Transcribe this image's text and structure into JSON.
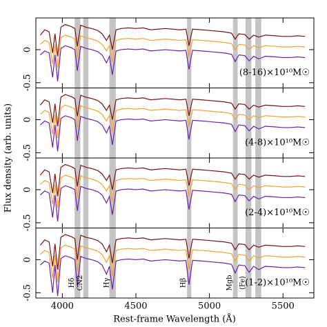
{
  "chart_data": {
    "type": "line",
    "xlabel": "Rest-frame Wavelength (Å)",
    "ylabel": "Flux density (arb. units)",
    "xlim": [
      3820,
      5710
    ],
    "xticks": [
      4000,
      4500,
      5000,
      5500
    ],
    "bands": [
      {
        "label": "Hδ",
        "range": [
          4083.5,
          4122.25
        ]
      },
      {
        "label": "CN2",
        "range": [
          4142,
          4177
        ]
      },
      {
        "label": "Hγ",
        "range": [
          4319.75,
          4363.5
        ]
      },
      {
        "label": "Hβ",
        "range": [
          4847.9,
          4876.6
        ]
      },
      {
        "label": "Mgb",
        "range": [
          5160,
          5192
        ]
      },
      {
        "label": "⟨Fe⟩",
        "range": [
          5245,
          5285
        ]
      },
      {
        "range": [
          5312,
          5352
        ]
      }
    ],
    "x": [
      3850,
      3880,
      3910,
      3934,
      3950,
      3968,
      3990,
      4020,
      4060,
      4085,
      4102,
      4125,
      4160,
      4200,
      4240,
      4270,
      4300,
      4320,
      4340,
      4365,
      4400,
      4450,
      4500,
      4550,
      4600,
      4650,
      4700,
      4750,
      4800,
      4840,
      4861,
      4885,
      4950,
      5000,
      5050,
      5100,
      5150,
      5175,
      5200,
      5240,
      5270,
      5300,
      5335,
      5380,
      5450,
      5500,
      5550,
      5600,
      5650
    ],
    "panels": [
      {
        "annotation": "(8-16)×10¹⁰M☉",
        "ylim": [
          -0.58,
          0.48
        ],
        "yticks": [
          -0.5,
          0
        ],
        "series": [
          {
            "color": "#7a1111",
            "values": [
              0.22,
              0.3,
              0.27,
              -0.05,
              0.24,
              -0.1,
              0.34,
              0.38,
              0.35,
              0.32,
              0.05,
              0.37,
              0.34,
              0.32,
              0.29,
              0.24,
              0.14,
              0.22,
              0.0,
              0.3,
              0.32,
              0.33,
              0.32,
              0.33,
              0.3,
              0.31,
              0.32,
              0.31,
              0.3,
              0.31,
              0.06,
              0.31,
              0.3,
              0.29,
              0.28,
              0.27,
              0.25,
              0.16,
              0.24,
              0.23,
              0.16,
              0.22,
              0.19,
              0.22,
              0.21,
              0.2,
              0.2,
              0.21,
              0.2
            ]
          },
          {
            "color": "#f5a030",
            "values": [
              0.08,
              0.14,
              0.11,
              -0.22,
              0.08,
              -0.28,
              0.18,
              0.22,
              0.19,
              0.16,
              -0.12,
              0.21,
              0.18,
              0.16,
              0.13,
              0.08,
              -0.02,
              0.06,
              -0.18,
              0.14,
              0.16,
              0.17,
              0.16,
              0.17,
              0.14,
              0.15,
              0.16,
              0.15,
              0.14,
              0.15,
              -0.1,
              0.15,
              0.14,
              0.13,
              0.12,
              0.11,
              0.09,
              0,
              0.08,
              0.07,
              0,
              0.06,
              0.03,
              0.06,
              0.05,
              0.04,
              0.04,
              0.05,
              0.04
            ]
          },
          {
            "color": "#6a1fb0",
            "values": [
              -0.08,
              -0.02,
              -0.05,
              -0.42,
              -0.08,
              -0.48,
              0.02,
              0.06,
              0.03,
              0.0,
              -0.32,
              0.05,
              0.02,
              0.0,
              -0.03,
              -0.08,
              -0.2,
              -0.1,
              -0.38,
              -0.02,
              0.0,
              0.01,
              0.0,
              0.01,
              -0.02,
              -0.01,
              0.0,
              -0.01,
              -0.02,
              -0.01,
              -0.3,
              -0.01,
              -0.02,
              -0.03,
              -0.04,
              -0.05,
              -0.07,
              -0.18,
              -0.08,
              -0.09,
              -0.17,
              -0.1,
              -0.14,
              -0.1,
              -0.11,
              -0.12,
              -0.12,
              -0.11,
              -0.12
            ]
          }
        ]
      },
      {
        "annotation": "(4-8)×10¹⁰M☉",
        "ylim": [
          -0.58,
          0.48
        ],
        "yticks": [
          -0.5,
          0
        ],
        "series": [
          {
            "color": "#7a1111",
            "values": [
              0.22,
              0.3,
              0.27,
              -0.05,
              0.24,
              -0.1,
              0.34,
              0.38,
              0.35,
              0.32,
              0.05,
              0.37,
              0.34,
              0.32,
              0.29,
              0.24,
              0.14,
              0.22,
              0.0,
              0.3,
              0.32,
              0.33,
              0.32,
              0.33,
              0.3,
              0.31,
              0.32,
              0.31,
              0.3,
              0.31,
              0.06,
              0.31,
              0.3,
              0.29,
              0.28,
              0.27,
              0.25,
              0.16,
              0.24,
              0.23,
              0.16,
              0.22,
              0.19,
              0.22,
              0.21,
              0.2,
              0.2,
              0.21,
              0.2
            ]
          },
          {
            "color": "#f5a030",
            "values": [
              0.08,
              0.14,
              0.11,
              -0.22,
              0.08,
              -0.28,
              0.18,
              0.22,
              0.19,
              0.16,
              -0.12,
              0.21,
              0.18,
              0.16,
              0.13,
              0.08,
              -0.02,
              0.06,
              -0.18,
              0.14,
              0.16,
              0.17,
              0.16,
              0.17,
              0.14,
              0.15,
              0.16,
              0.15,
              0.14,
              0.15,
              -0.1,
              0.15,
              0.14,
              0.13,
              0.12,
              0.11,
              0.09,
              0,
              0.08,
              0.07,
              0,
              0.06,
              0.03,
              0.06,
              0.05,
              0.04,
              0.04,
              0.05,
              0.04
            ]
          },
          {
            "color": "#6a1fb0",
            "values": [
              -0.08,
              -0.02,
              -0.05,
              -0.42,
              -0.08,
              -0.48,
              0.02,
              0.06,
              0.03,
              0.0,
              -0.32,
              0.05,
              0.02,
              0.0,
              -0.03,
              -0.08,
              -0.2,
              -0.1,
              -0.38,
              -0.02,
              0.0,
              0.01,
              0.0,
              0.01,
              -0.02,
              -0.01,
              0.0,
              -0.01,
              -0.02,
              -0.01,
              -0.3,
              -0.01,
              -0.02,
              -0.03,
              -0.04,
              -0.05,
              -0.07,
              -0.18,
              -0.08,
              -0.09,
              -0.17,
              -0.1,
              -0.14,
              -0.1,
              -0.11,
              -0.12,
              -0.12,
              -0.11,
              -0.12
            ]
          }
        ]
      },
      {
        "annotation": "(2-4)×10¹⁰M☉",
        "ylim": [
          -0.58,
          0.48
        ],
        "yticks": [
          -0.5,
          0
        ],
        "series": [
          {
            "color": "#7a1111",
            "values": [
              0.22,
              0.3,
              0.27,
              -0.05,
              0.24,
              -0.1,
              0.34,
              0.38,
              0.35,
              0.32,
              0.05,
              0.37,
              0.34,
              0.32,
              0.29,
              0.24,
              0.14,
              0.22,
              0.0,
              0.3,
              0.32,
              0.33,
              0.32,
              0.33,
              0.3,
              0.31,
              0.32,
              0.31,
              0.3,
              0.31,
              0.06,
              0.31,
              0.3,
              0.29,
              0.28,
              0.27,
              0.25,
              0.16,
              0.24,
              0.23,
              0.16,
              0.22,
              0.19,
              0.22,
              0.21,
              0.2,
              0.2,
              0.21,
              0.2
            ]
          },
          {
            "color": "#f5a030",
            "values": [
              0.08,
              0.14,
              0.11,
              -0.22,
              0.08,
              -0.28,
              0.18,
              0.22,
              0.19,
              0.16,
              -0.12,
              0.21,
              0.18,
              0.16,
              0.13,
              0.08,
              -0.02,
              0.06,
              -0.18,
              0.14,
              0.16,
              0.17,
              0.16,
              0.17,
              0.14,
              0.15,
              0.16,
              0.15,
              0.14,
              0.15,
              -0.1,
              0.15,
              0.14,
              0.13,
              0.12,
              0.11,
              0.09,
              0,
              0.08,
              0.07,
              0,
              0.06,
              0.03,
              0.06,
              0.05,
              0.04,
              0.04,
              0.05,
              0.04
            ]
          },
          {
            "color": "#6a1fb0",
            "values": [
              -0.08,
              -0.02,
              -0.05,
              -0.42,
              -0.08,
              -0.48,
              0.02,
              0.06,
              0.03,
              0.0,
              -0.32,
              0.05,
              0.02,
              0.0,
              -0.03,
              -0.08,
              -0.2,
              -0.1,
              -0.38,
              -0.02,
              0.0,
              0.01,
              0.0,
              0.01,
              -0.02,
              -0.01,
              0.0,
              -0.01,
              -0.02,
              -0.01,
              -0.3,
              -0.01,
              -0.02,
              -0.03,
              -0.04,
              -0.05,
              -0.07,
              -0.18,
              -0.08,
              -0.09,
              -0.17,
              -0.1,
              -0.14,
              -0.1,
              -0.11,
              -0.12,
              -0.12,
              -0.11,
              -0.12
            ]
          }
        ]
      },
      {
        "annotation": "(1-2)×10¹⁰M☉",
        "ylim": [
          -0.58,
          0.48
        ],
        "yticks": [
          -0.5,
          0
        ],
        "series": [
          {
            "color": "#7a1111",
            "values": [
              0.22,
              0.3,
              0.27,
              -0.1,
              0.24,
              -0.15,
              0.34,
              0.38,
              0.35,
              0.32,
              0.0,
              0.37,
              0.34,
              0.32,
              0.29,
              0.24,
              0.12,
              0.22,
              -0.05,
              0.3,
              0.32,
              0.33,
              0.32,
              0.33,
              0.3,
              0.31,
              0.32,
              0.31,
              0.3,
              0.31,
              0.02,
              0.31,
              0.3,
              0.29,
              0.28,
              0.27,
              0.25,
              0.15,
              0.24,
              0.23,
              0.15,
              0.22,
              0.19,
              0.22,
              0.21,
              0.2,
              0.2,
              0.21,
              0.2
            ]
          },
          {
            "color": "#f5a030",
            "values": [
              0.08,
              0.14,
              0.11,
              -0.28,
              0.08,
              -0.34,
              0.18,
              0.22,
              0.19,
              0.16,
              -0.18,
              0.21,
              0.18,
              0.16,
              0.13,
              0.08,
              -0.04,
              0.06,
              -0.24,
              0.14,
              0.16,
              0.17,
              0.16,
              0.17,
              0.14,
              0.15,
              0.16,
              0.15,
              0.14,
              0.15,
              -0.15,
              0.15,
              0.14,
              0.13,
              0.12,
              0.11,
              0.09,
              -0.02,
              0.08,
              0.07,
              -0.02,
              0.06,
              0.03,
              0.06,
              0.05,
              0.04,
              0.04,
              0.05,
              0.04
            ]
          },
          {
            "color": "#6a1fb0",
            "values": [
              -0.08,
              -0.02,
              -0.05,
              -0.5,
              -0.08,
              -0.55,
              0.02,
              0.06,
              0.03,
              0.0,
              -0.4,
              0.05,
              0.02,
              0.0,
              -0.03,
              -0.08,
              -0.22,
              -0.1,
              -0.45,
              -0.02,
              0.0,
              0.01,
              0.0,
              0.01,
              -0.02,
              -0.01,
              0.0,
              -0.01,
              -0.02,
              -0.01,
              -0.38,
              -0.01,
              -0.02,
              -0.03,
              -0.04,
              -0.05,
              -0.07,
              -0.2,
              -0.08,
              -0.09,
              -0.19,
              -0.1,
              -0.15,
              -0.1,
              -0.11,
              -0.12,
              -0.12,
              -0.11,
              -0.12
            ]
          }
        ]
      }
    ]
  }
}
